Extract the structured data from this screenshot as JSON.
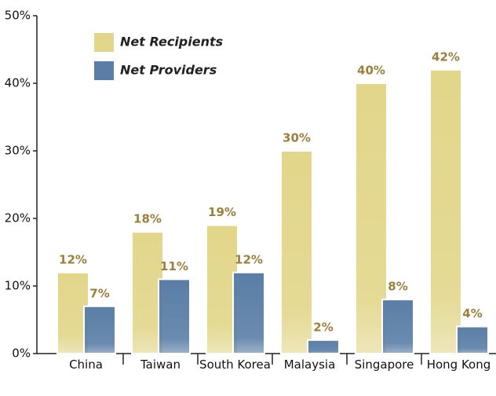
{
  "chart_data": {
    "type": "bar",
    "categories": [
      "China",
      "Taiwan",
      "South Korea",
      "Malaysia",
      "Singapore",
      "Hong Kong"
    ],
    "series": [
      {
        "name": "Net Recipients",
        "color": "#e2d68a",
        "values": [
          12,
          18,
          19,
          30,
          40,
          42
        ],
        "value_labels": [
          "12%",
          "18%",
          "19%",
          "30%",
          "40%",
          "42%"
        ]
      },
      {
        "name": "Net Providers",
        "color": "#5a7ea6",
        "values": [
          7,
          11,
          12,
          2,
          8,
          4
        ],
        "value_labels": [
          "7%",
          "11%",
          "12%",
          "2%",
          "8%",
          "4%"
        ]
      }
    ],
    "ylim": [
      0,
      50
    ],
    "yticks": [
      {
        "value": 0,
        "label": "0%"
      },
      {
        "value": 10,
        "label": "10%"
      },
      {
        "value": 20,
        "label": "20%"
      },
      {
        "value": 30,
        "label": "30%"
      },
      {
        "value": 40,
        "label": "40%"
      },
      {
        "value": 50,
        "label": "50%"
      }
    ],
    "legend": "top-left"
  }
}
